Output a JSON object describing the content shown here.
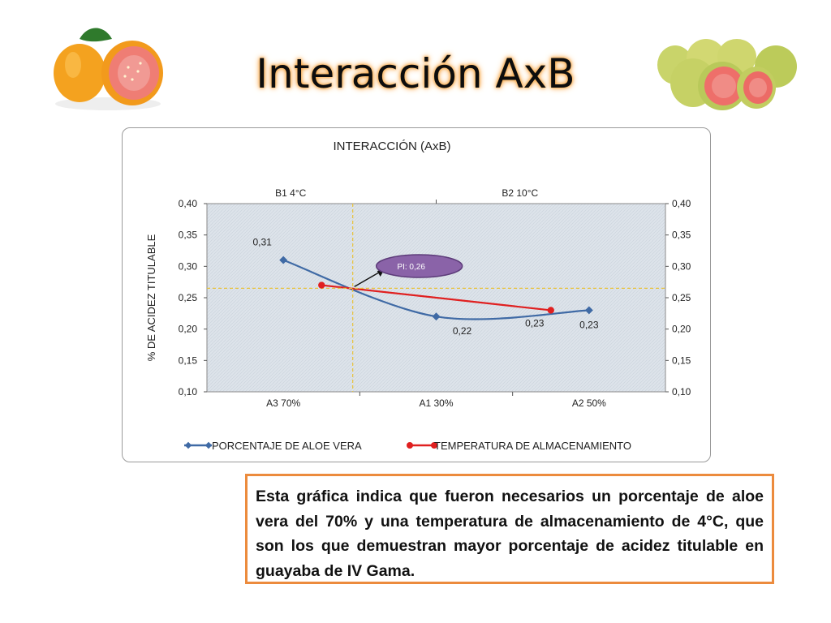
{
  "slide_title": "Interacción AxB",
  "body_text": "Esta gráfica  indica que fueron necesarios un porcentaje de aloe vera del 70% y una temperatura de almacenamiento de 4°C, que son los que demuestran mayor porcentaje de acidez titulable en guayaba de IV Gama.",
  "colors": {
    "series_a": "#3f6aa5",
    "series_b": "#e02020",
    "callout_fill": "#8a63a8",
    "textbox_border": "#ec8b3d",
    "title_glow": "#f7a94a",
    "plot_bg": "#dde3ea",
    "guide_line": "#e8c23a"
  },
  "chart_data": {
    "type": "line",
    "title": "INTERACCIÓN (AxB)",
    "ylabel": "% DE ACIDEZ TITULABLE",
    "ylim": [
      0.1,
      0.4
    ],
    "yticks": [
      "0,10",
      "0,15",
      "0,20",
      "0,25",
      "0,30",
      "0,35",
      "0,40"
    ],
    "grid": true,
    "bottom_axis": {
      "categories": [
        "A3 70%",
        "A1 30%",
        "A2 50%"
      ]
    },
    "top_axis": {
      "categories": [
        "B1 4°C",
        "B2 10°C"
      ]
    },
    "series": [
      {
        "name": "PORCENTAJE DE ALOE VERA",
        "axis": "bottom",
        "values": [
          0.31,
          0.22,
          0.23
        ],
        "labels": [
          "0,31",
          "0,22",
          "0,23"
        ],
        "marker": "diamond"
      },
      {
        "name": "TEMPERATURA DE ALMACENAMIENTO",
        "axis": "top",
        "values": [
          0.27,
          0.23
        ],
        "labels": [
          "",
          "0,23"
        ],
        "marker": "circle"
      }
    ],
    "intersection": {
      "label": "PI: 0,26",
      "y": 0.265
    },
    "legend_position": "bottom"
  }
}
